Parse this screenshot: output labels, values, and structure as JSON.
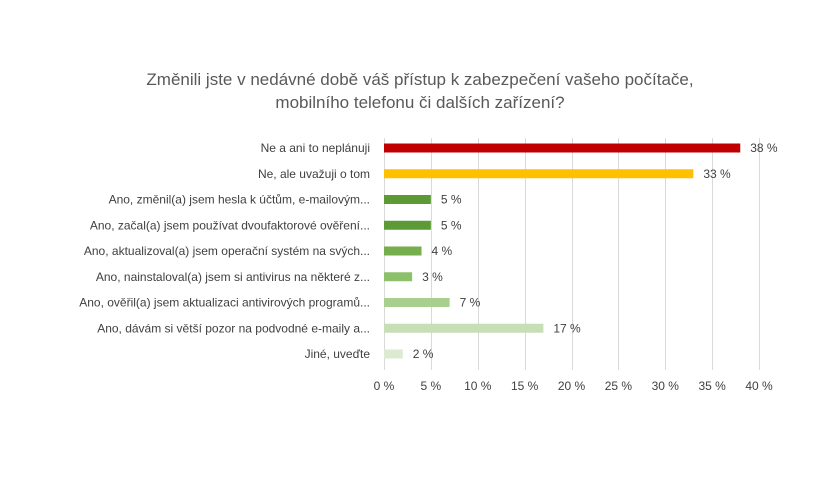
{
  "chart_data": {
    "type": "bar",
    "orientation": "horizontal",
    "title_lines": [
      "Změnili jste v nedávné době váš přístup k zabezpečení  vašeho počítače,",
      "mobilního telefonu či dalších zařízení?"
    ],
    "categories": [
      "Ne a ani to neplánuji",
      "Ne, ale uvažuji o tom",
      "Ano, změnil(a) jsem hesla k účtům, e-mailovým...",
      "Ano, začal(a) jsem používat dvoufaktorové ověření...",
      "Ano, aktualizoval(a) jsem operační systém na svých...",
      "Ano, nainstaloval(a) jsem si antivirus na některé z...",
      "Ano, ověřil(a) jsem aktualizaci antivirových programů...",
      "Ano, dávám si větší pozor na podvodné e-maily a...",
      "Jiné, uveďte"
    ],
    "values": [
      38,
      33,
      5,
      5,
      4,
      3,
      7,
      17,
      2
    ],
    "data_labels": [
      "38 %",
      "33 %",
      "5 %",
      "5 %",
      "4 %",
      "3 %",
      "7 %",
      "17 %",
      "2 %"
    ],
    "colors": [
      "#c00000",
      "#ffc000",
      "#5c9a36",
      "#5c9a36",
      "#76ae4e",
      "#8dc06a",
      "#a9cf8f",
      "#c6dfb5",
      "#dbead0"
    ],
    "xlim": [
      0,
      40
    ],
    "x_ticks": [
      0,
      5,
      10,
      15,
      20,
      25,
      30,
      35,
      40
    ],
    "x_tick_labels": [
      "0 %",
      "5 %",
      "10 %",
      "15 %",
      "20 %",
      "25 %",
      "30 %",
      "35 %",
      "40 %"
    ],
    "grid": true,
    "legend": "none",
    "colors_meta": {
      "grid": "#d9d9d9",
      "text": "#404040",
      "title": "#595959"
    }
  }
}
